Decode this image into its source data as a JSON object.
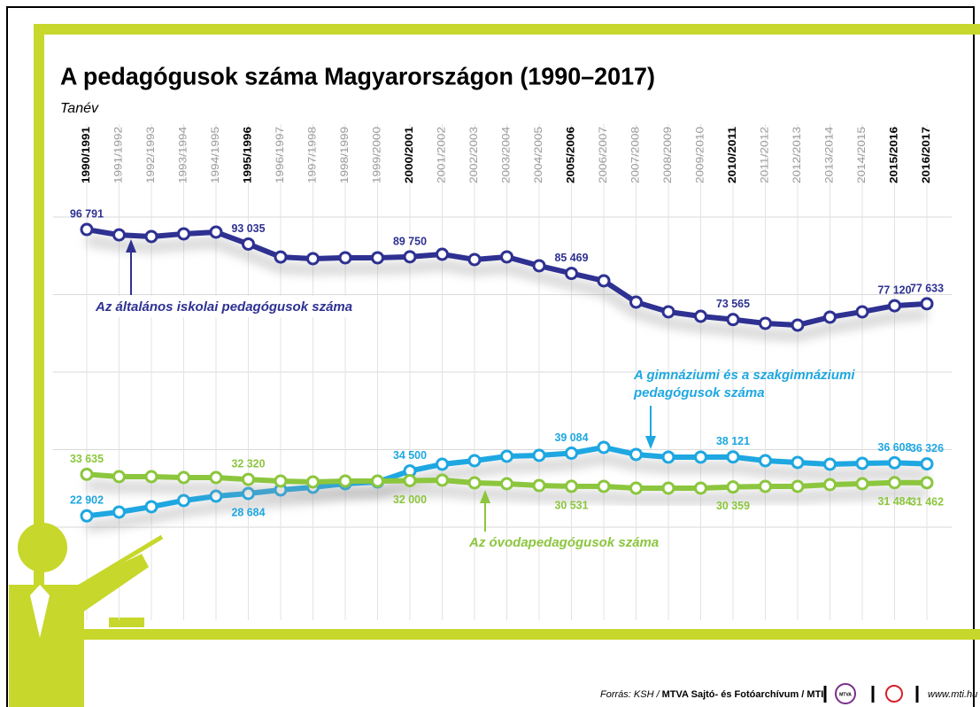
{
  "chart_data": {
    "type": "line",
    "title": "A pedagógusok száma Magyarországon (1990–2017)",
    "x_label": "Tanév",
    "categories": [
      "1990/1991",
      "1991/1992",
      "1992/1993",
      "1993/1994",
      "1994/1995",
      "1995/1996",
      "1996/1997",
      "1997/1998",
      "1998/1999",
      "1999/2000",
      "2000/2001",
      "2001/2002",
      "2002/2003",
      "2003/2004",
      "2004/2005",
      "2005/2006",
      "2006/2007",
      "2007/2008",
      "2008/2009",
      "2009/2010",
      "2010/2011",
      "2011/2012",
      "2012/2013",
      "2013/2014",
      "2014/2015",
      "2015/2016",
      "2016/2017"
    ],
    "ylim": [
      20000,
      100000
    ],
    "yticks": [
      20000,
      40000,
      60000,
      80000,
      100000
    ],
    "grid": true,
    "series": [
      {
        "name": "Az általános iskolai pedagógusok száma",
        "color": "#2e3191",
        "values": [
          96791,
          95400,
          94980,
          95670,
          96120,
          93035,
          89700,
          89270,
          89500,
          89500,
          89750,
          90400,
          89040,
          89720,
          87440,
          85469,
          83550,
          78060,
          75550,
          74400,
          73565,
          72580,
          72120,
          74180,
          75550,
          77120,
          77633
        ],
        "value_labels": [
          "96 791",
          null,
          null,
          null,
          null,
          "93 035",
          null,
          null,
          null,
          null,
          "89 750",
          null,
          null,
          null,
          null,
          "85 469",
          null,
          null,
          null,
          null,
          "73 565",
          null,
          null,
          null,
          null,
          "77 120",
          "77 633"
        ]
      },
      {
        "name": "A gimnáziumi és a szakgimnáziumi pedagógusok száma",
        "color": "#1ea7e1",
        "values": [
          22902,
          23890,
          25260,
          26860,
          28000,
          28684,
          29600,
          30290,
          31200,
          31660,
          34500,
          36230,
          37150,
          38290,
          38520,
          39084,
          40580,
          38750,
          38060,
          38060,
          38121,
          37150,
          36690,
          36230,
          36460,
          36608,
          36326
        ],
        "value_labels": [
          "22 902",
          null,
          null,
          null,
          null,
          "28 684",
          null,
          null,
          null,
          null,
          "34 500",
          null,
          null,
          null,
          null,
          "39 084",
          null,
          null,
          null,
          null,
          "38 121",
          null,
          null,
          null,
          null,
          "36 608",
          "36 326"
        ]
      },
      {
        "name": "Az óvodapedagógusok száma",
        "color": "#8cc63e",
        "values": [
          33635,
          33030,
          33030,
          32800,
          32800,
          32320,
          31890,
          31660,
          31890,
          31890,
          32000,
          32120,
          31430,
          31200,
          30740,
          30531,
          30520,
          30060,
          30060,
          30060,
          30359,
          30520,
          30520,
          30970,
          31200,
          31484,
          31462
        ],
        "value_labels": [
          "33 635",
          null,
          null,
          null,
          null,
          "32 320",
          null,
          null,
          null,
          null,
          "32 000",
          null,
          null,
          null,
          null,
          "30 531",
          null,
          null,
          null,
          null,
          "30 359",
          null,
          null,
          null,
          null,
          "31 484",
          "31 462"
        ]
      }
    ]
  },
  "footer": {
    "source": "Forrás: KSH /",
    "source_org": "MTVA Sajtó- és Fotóarchívum / MTI",
    "logo": "MTVA",
    "website": "www.mti.hu"
  }
}
